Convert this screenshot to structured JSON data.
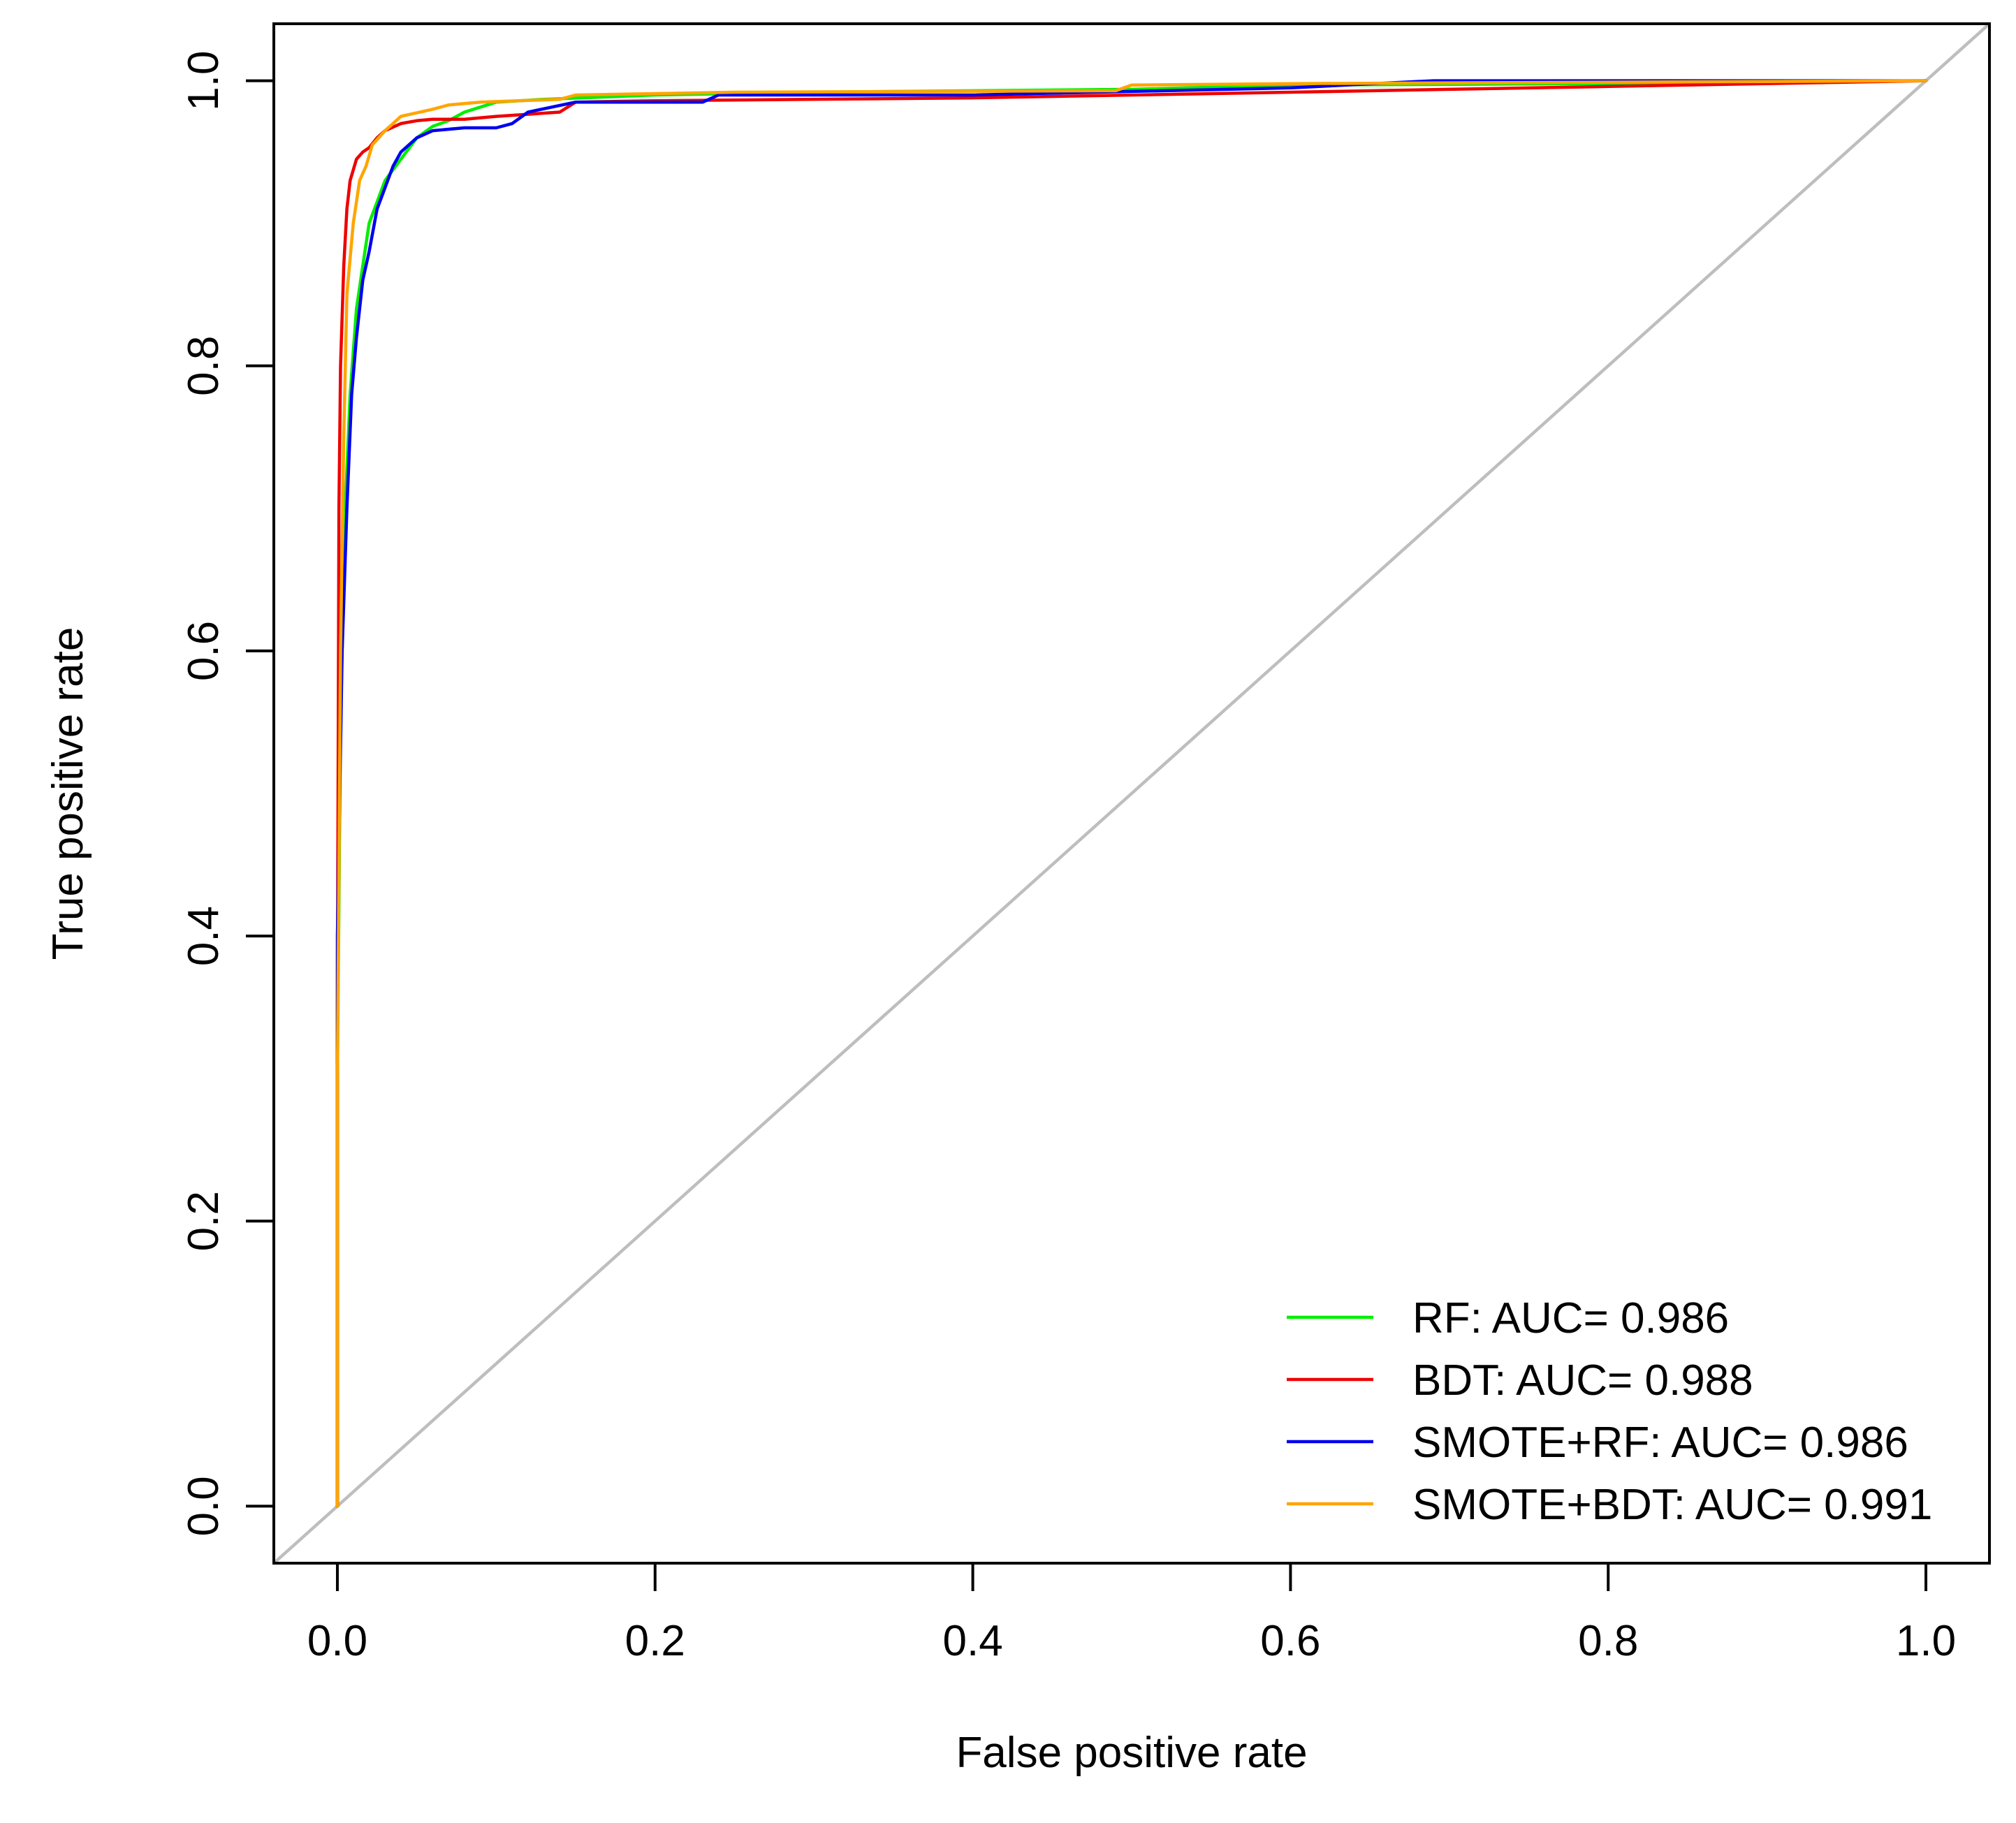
{
  "chart_data": {
    "type": "line",
    "title": "",
    "xlabel": "False positive rate",
    "ylabel": "True positive rate",
    "xlim": [
      -0.04,
      1.04
    ],
    "ylim": [
      -0.04,
      1.04
    ],
    "x_ticks": [
      "0.0",
      "0.2",
      "0.4",
      "0.6",
      "0.8",
      "1.0"
    ],
    "y_ticks": [
      "0.0",
      "0.2",
      "0.4",
      "0.6",
      "0.8",
      "1.0"
    ],
    "grid": false,
    "legend_position": "bottom-right",
    "reference_line": {
      "color": "#bebebe",
      "x": [
        -0.04,
        1.04
      ],
      "y": [
        -0.04,
        1.04
      ]
    },
    "series": [
      {
        "name": "RF: AUC= 0.986",
        "color": "#00ee00",
        "points": [
          [
            0.0,
            0.0
          ],
          [
            0.0,
            0.3
          ],
          [
            0.002,
            0.55
          ],
          [
            0.005,
            0.7
          ],
          [
            0.008,
            0.78
          ],
          [
            0.012,
            0.84
          ],
          [
            0.016,
            0.87
          ],
          [
            0.02,
            0.9
          ],
          [
            0.025,
            0.915
          ],
          [
            0.03,
            0.93
          ],
          [
            0.04,
            0.945
          ],
          [
            0.05,
            0.96
          ],
          [
            0.06,
            0.968
          ],
          [
            0.07,
            0.972
          ],
          [
            0.08,
            0.978
          ],
          [
            0.1,
            0.985
          ],
          [
            0.13,
            0.987
          ],
          [
            0.2,
            0.99
          ],
          [
            0.3,
            0.992
          ],
          [
            0.5,
            0.994
          ],
          [
            0.6,
            0.997
          ],
          [
            0.8,
            0.998
          ],
          [
            1.0,
            1.0
          ]
        ]
      },
      {
        "name": "BDT: AUC= 0.988",
        "color": "#ee0000",
        "points": [
          [
            0.0,
            0.0
          ],
          [
            0.0,
            0.35
          ],
          [
            0.001,
            0.7
          ],
          [
            0.002,
            0.8
          ],
          [
            0.004,
            0.87
          ],
          [
            0.006,
            0.91
          ],
          [
            0.008,
            0.93
          ],
          [
            0.012,
            0.945
          ],
          [
            0.016,
            0.95
          ],
          [
            0.02,
            0.953
          ],
          [
            0.025,
            0.96
          ],
          [
            0.03,
            0.965
          ],
          [
            0.04,
            0.97
          ],
          [
            0.05,
            0.972
          ],
          [
            0.06,
            0.973
          ],
          [
            0.08,
            0.973
          ],
          [
            0.1,
            0.975
          ],
          [
            0.14,
            0.978
          ],
          [
            0.15,
            0.985
          ],
          [
            0.2,
            0.986
          ],
          [
            0.4,
            0.988
          ],
          [
            0.6,
            0.992
          ],
          [
            0.8,
            0.996
          ],
          [
            1.0,
            1.0
          ]
        ]
      },
      {
        "name": "SMOTE+RF: AUC= 0.986",
        "color": "#0000ee",
        "points": [
          [
            0.0,
            0.0
          ],
          [
            0.0,
            0.4
          ],
          [
            0.003,
            0.6
          ],
          [
            0.006,
            0.7
          ],
          [
            0.009,
            0.78
          ],
          [
            0.012,
            0.82
          ],
          [
            0.016,
            0.86
          ],
          [
            0.02,
            0.88
          ],
          [
            0.025,
            0.91
          ],
          [
            0.03,
            0.925
          ],
          [
            0.035,
            0.94
          ],
          [
            0.04,
            0.95
          ],
          [
            0.05,
            0.96
          ],
          [
            0.06,
            0.965
          ],
          [
            0.08,
            0.967
          ],
          [
            0.1,
            0.967
          ],
          [
            0.11,
            0.97
          ],
          [
            0.12,
            0.978
          ],
          [
            0.15,
            0.985
          ],
          [
            0.23,
            0.985
          ],
          [
            0.24,
            0.99
          ],
          [
            0.4,
            0.99
          ],
          [
            0.6,
            0.995
          ],
          [
            0.69,
            1.0
          ],
          [
            1.0,
            1.0
          ]
        ]
      },
      {
        "name": "SMOTE+BDT: AUC= 0.991",
        "color": "#ffa500",
        "points": [
          [
            0.0,
            0.0
          ],
          [
            0.0,
            0.3
          ],
          [
            0.002,
            0.6
          ],
          [
            0.004,
            0.75
          ],
          [
            0.006,
            0.85
          ],
          [
            0.01,
            0.9
          ],
          [
            0.014,
            0.93
          ],
          [
            0.018,
            0.94
          ],
          [
            0.022,
            0.955
          ],
          [
            0.03,
            0.965
          ],
          [
            0.035,
            0.97
          ],
          [
            0.04,
            0.975
          ],
          [
            0.06,
            0.98
          ],
          [
            0.07,
            0.983
          ],
          [
            0.09,
            0.985
          ],
          [
            0.14,
            0.987
          ],
          [
            0.15,
            0.99
          ],
          [
            0.25,
            0.992
          ],
          [
            0.49,
            0.993
          ],
          [
            0.5,
            0.997
          ],
          [
            0.6,
            0.998
          ],
          [
            1.0,
            1.0
          ]
        ]
      }
    ]
  }
}
